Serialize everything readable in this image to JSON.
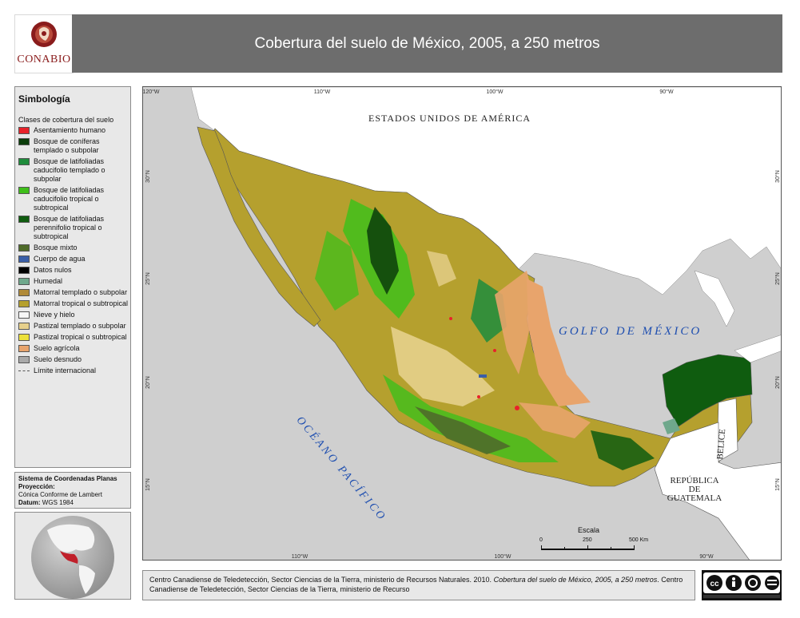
{
  "header": {
    "logo_text": "CONABIO",
    "title": "Cobertura del suelo de México, 2005, a 250 metros"
  },
  "legend": {
    "title": "Simbología",
    "subtitle": "Clases de cobertura del suelo",
    "items": [
      {
        "label": "Asentamiento humano",
        "color": "#e8222a"
      },
      {
        "label": "Bosque de coníferas templado o subpolar",
        "color": "#0b3d0b"
      },
      {
        "label": "Bosque de latifoliadas caducifolio templado o subpolar",
        "color": "#1f8c3c"
      },
      {
        "label": "Bosque de latifoliadas caducifolio tropical o subtropical",
        "color": "#3fbf1a"
      },
      {
        "label": "Bosque de latifoliadas perennifolio tropical o subtropical",
        "color": "#0f5c0f"
      },
      {
        "label": "Bosque mixto",
        "color": "#4f6b2a"
      },
      {
        "label": "Cuerpo de agua",
        "color": "#3a5fa8"
      },
      {
        "label": "Datos nulos",
        "color": "#000000"
      },
      {
        "label": "Humedal",
        "color": "#6fa88c"
      },
      {
        "label": "Matorral templado o subpolar",
        "color": "#b08a38"
      },
      {
        "label": "Matorral tropical o subtropical",
        "color": "#b5a02e"
      },
      {
        "label": "Nieve y hielo",
        "color": "#f7f7f7"
      },
      {
        "label": "Pastizal templado o subpolar",
        "color": "#e6d08c"
      },
      {
        "label": "Pastizal tropical o subtropical",
        "color": "#ece13a"
      },
      {
        "label": "Suelo agrícola",
        "color": "#e8a46c"
      },
      {
        "label": "Suelo desnudo",
        "color": "#a9a9a9"
      }
    ],
    "boundary_label": "Límite internacional"
  },
  "crs": {
    "system": "Sistema de Coordenadas Planas",
    "projection_label": "Proyección:",
    "projection": "Cónica Conforme de Lambert",
    "datum_label": "Datum:",
    "datum": "WGS 1984"
  },
  "map": {
    "colors": {
      "ocean": "#cfcfcf",
      "land_other": "#ffffff",
      "mexico_base": "#b5a02e",
      "label_water": "#1f4fb0"
    },
    "top_ticks": [
      "120°W",
      "110°W",
      "100°W",
      "90°W"
    ],
    "bottom_ticks": [
      "110°W",
      "100°W",
      "90°W"
    ],
    "left_ticks": [
      "30°N",
      "25°N",
      "20°N",
      "15°N"
    ],
    "right_ticks": [
      "30°N",
      "25°N",
      "20°N",
      "15°N"
    ],
    "labels": {
      "usa": "ESTADOS UNIDOS DE AMÉRICA",
      "gulf": "GOLFO DE MÉXICO",
      "pacific": "OCÉANO PACÍFICO",
      "belize": "BELICE",
      "guatemala_1": "REPÚBLICA",
      "guatemala_2": "DE",
      "guatemala_3": "GUATEMALA"
    },
    "scale": {
      "title": "Escala",
      "labels": [
        "0",
        "250",
        "500 Km"
      ]
    }
  },
  "credit": {
    "text_a": "Centro Canadiense de Teledetección, Sector Ciencias de la Tierra, ministerio de Recursos Naturales. 2010. ",
    "text_italic": "Cobertura del suelo de México, 2005, a 250 metros",
    "text_b": ". Centro Canadiense de Teledetección, Sector Ciencias de la Tierra, ministerio de Recurso"
  },
  "license": {
    "badge": "cc"
  }
}
